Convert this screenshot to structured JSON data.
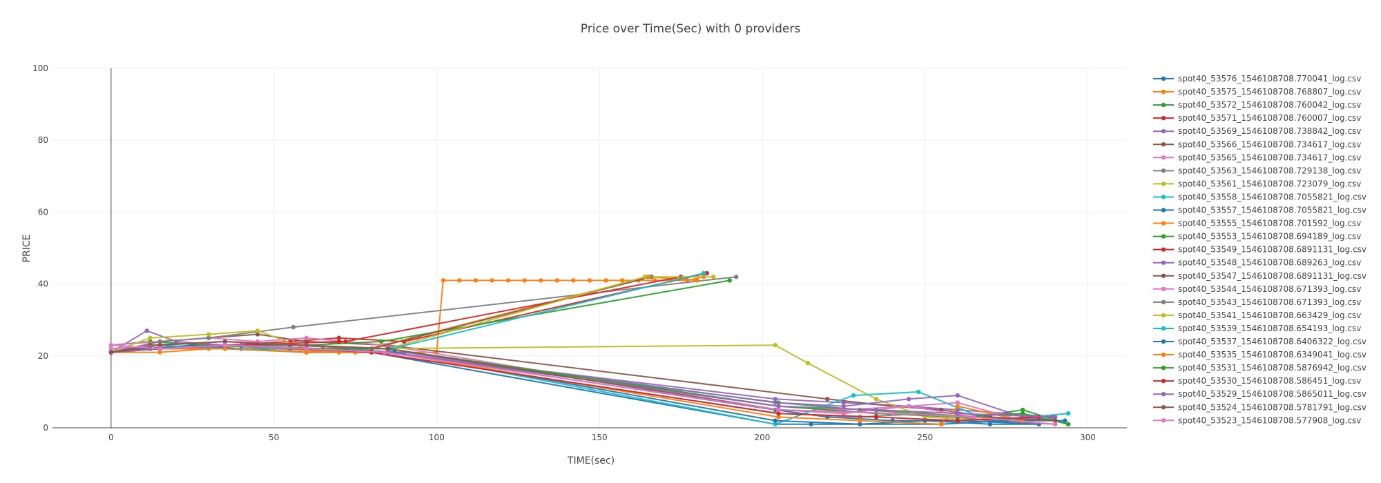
{
  "chart_data": {
    "type": "line",
    "title": "Price over Time(Sec) with 0 providers",
    "xlabel": "TIME(sec)",
    "ylabel": "PRICE",
    "xlim": [
      -18,
      312
    ],
    "ylim": [
      0,
      100
    ],
    "x_ticks": [
      0,
      50,
      100,
      150,
      200,
      250,
      300
    ],
    "y_ticks": [
      0,
      20,
      40,
      60,
      80,
      100
    ],
    "grid": true,
    "legend_position": "right",
    "series": [
      {
        "name": "spot40_53576_1546108708.770041_log.csv",
        "color": "#1f77b4",
        "x": [
          0,
          10,
          25,
          40,
          60,
          80,
          204,
          215,
          230,
          250,
          270,
          285
        ],
        "y": [
          21,
          22,
          23,
          22,
          21,
          21,
          1,
          1,
          1,
          2,
          1,
          1
        ]
      },
      {
        "name": "spot40_53575_1546108708.768807_log.csv",
        "color": "#ff7f0e",
        "x": [
          0,
          15,
          30,
          50,
          70,
          100,
          102,
          107,
          112,
          117,
          122,
          127,
          132,
          137,
          142,
          147,
          152,
          157,
          162,
          167,
          172,
          177,
          182
        ],
        "y": [
          21,
          21,
          22,
          22,
          21,
          21,
          41,
          41,
          41,
          41,
          41,
          41,
          41,
          41,
          41,
          41,
          41,
          41,
          41,
          41,
          41,
          41,
          42
        ]
      },
      {
        "name": "spot40_53572_1546108708.760042_log.csv",
        "color": "#2ca02c",
        "x": [
          0,
          12,
          30,
          55,
          75,
          205,
          230,
          250,
          265,
          280,
          294
        ],
        "y": [
          23,
          24,
          23,
          22,
          22,
          7,
          5,
          4,
          3,
          5,
          1
        ]
      },
      {
        "name": "spot40_53571_1546108708.760007_log.csv",
        "color": "#d62728",
        "x": [
          0,
          15,
          35,
          55,
          70,
          90,
          183
        ],
        "y": [
          21,
          22,
          23,
          24,
          25,
          24,
          43
        ]
      },
      {
        "name": "spot40_53569_1546108708.738842_log.csv",
        "color": "#9467bd",
        "x": [
          0,
          11,
          20,
          35,
          60,
          85,
          204,
          225,
          245,
          260,
          275,
          290
        ],
        "y": [
          21,
          27,
          24,
          23,
          22,
          21,
          8,
          7,
          6,
          5,
          4,
          3
        ]
      },
      {
        "name": "spot40_53566_1546108708.734617_log.csv",
        "color": "#8c564b",
        "x": [
          0,
          15,
          30,
          45,
          60,
          85,
          220,
          240,
          255,
          270,
          290
        ],
        "y": [
          21,
          24,
          25,
          26,
          24,
          23,
          8,
          6,
          5,
          3,
          2
        ]
      },
      {
        "name": "spot40_53565_1546108708.734617_log.csv",
        "color": "#e377c2",
        "x": [
          0,
          15,
          30,
          45,
          60,
          84,
          205,
          225,
          245,
          265,
          285
        ],
        "y": [
          23,
          24,
          25,
          24,
          25,
          23,
          5,
          4,
          6,
          3,
          1
        ]
      },
      {
        "name": "spot40_53563_1546108708.729138_log.csv",
        "color": "#7f7f7f",
        "x": [
          0,
          15,
          30,
          56,
          192
        ],
        "y": [
          21,
          24,
          25,
          28,
          42
        ]
      },
      {
        "name": "spot40_53561_1546108708.723079_log.csv",
        "color": "#bcbd22",
        "x": [
          0,
          12,
          30,
          45,
          60,
          80,
          204,
          214,
          235,
          250,
          270,
          290
        ],
        "y": [
          21,
          25,
          26,
          27,
          22,
          22,
          23,
          18,
          8,
          3,
          2,
          1
        ]
      },
      {
        "name": "spot40_53558_1546108708.7055821_log.csv",
        "color": "#17becf",
        "x": [
          0,
          15,
          35,
          60,
          87,
          204,
          228,
          248,
          270,
          294
        ],
        "y": [
          22,
          23,
          22,
          22,
          21,
          1,
          9,
          10,
          2,
          4
        ]
      },
      {
        "name": "spot40_53557_1546108708.7055821_log.csv",
        "color": "#1f77b4",
        "x": [
          0,
          12,
          35,
          60,
          85,
          204,
          220,
          240,
          260,
          285
        ],
        "y": [
          21,
          22,
          22,
          21,
          21,
          5,
          3,
          2,
          2,
          1
        ]
      },
      {
        "name": "spot40_53555_1546108708.701592_log.csv",
        "color": "#ff7f0e",
        "x": [
          0,
          15,
          35,
          55,
          70,
          75,
          165,
          180
        ],
        "y": [
          21,
          22,
          23,
          22,
          21,
          21,
          42,
          41
        ]
      },
      {
        "name": "spot40_53553_1546108708.694189_log.csv",
        "color": "#2ca02c",
        "x": [
          0,
          15,
          35,
          60,
          83,
          190
        ],
        "y": [
          21,
          22,
          23,
          23,
          24,
          41
        ]
      },
      {
        "name": "spot40_53549_1546108708.6891131_log.csv",
        "color": "#d62728",
        "x": [
          0,
          15,
          40,
          70,
          72,
          175
        ],
        "y": [
          21,
          22,
          23,
          24,
          24,
          42
        ]
      },
      {
        "name": "spot40_53548_1546108708.689263_log.csv",
        "color": "#9467bd",
        "x": [
          0,
          15,
          40,
          65,
          90,
          204,
          225,
          245,
          260,
          280,
          290
        ],
        "y": [
          21,
          22,
          23,
          22,
          21,
          7,
          6,
          8,
          9,
          3,
          2
        ]
      },
      {
        "name": "spot40_53547_1546108708.6891131_log.csv",
        "color": "#8c564b",
        "x": [
          0,
          12,
          35,
          55,
          80,
          166
        ],
        "y": [
          21,
          23,
          24,
          23,
          22,
          42
        ]
      },
      {
        "name": "spot40_53544_1546108708.671393_log.csv",
        "color": "#e377c2",
        "x": [
          0,
          15,
          35,
          60,
          85,
          205,
          225,
          245,
          260,
          280
        ],
        "y": [
          22,
          23,
          24,
          23,
          22,
          6,
          5,
          6,
          7,
          2
        ]
      },
      {
        "name": "spot40_53543_1546108708.671393_log.csv",
        "color": "#7f7f7f",
        "x": [
          0,
          15,
          35,
          55,
          80,
          205,
          230,
          250,
          270,
          290
        ],
        "y": [
          21,
          22,
          23,
          22,
          21,
          4,
          3,
          4,
          2,
          1
        ]
      },
      {
        "name": "spot40_53541_1546108708.663429_log.csv",
        "color": "#bcbd22",
        "x": [
          0,
          15,
          35,
          60,
          85,
          164,
          185
        ],
        "y": [
          21,
          22,
          23,
          22,
          22,
          42,
          42
        ]
      },
      {
        "name": "spot40_53539_1546108708.654193_log.csv",
        "color": "#17becf",
        "x": [
          0,
          15,
          35,
          60,
          86,
          182
        ],
        "y": [
          21,
          22,
          23,
          22,
          22,
          43
        ]
      },
      {
        "name": "spot40_53537_1546108708.6406322_log.csv",
        "color": "#1f77b4",
        "x": [
          0,
          15,
          35,
          60,
          87,
          204,
          230,
          255,
          275,
          293
        ],
        "y": [
          21,
          22,
          23,
          22,
          21,
          2,
          1,
          1,
          2,
          2
        ]
      },
      {
        "name": "spot40_53535_1546108708.6349041_log.csv",
        "color": "#ff7f0e",
        "x": [
          0,
          15,
          35,
          60,
          85,
          205,
          230,
          255,
          260,
          280
        ],
        "y": [
          21,
          22,
          22,
          21,
          21,
          3,
          2,
          1,
          6,
          2
        ]
      },
      {
        "name": "spot40_53531_1546108708.5876942_log.csv",
        "color": "#2ca02c",
        "x": [
          0,
          15,
          35,
          60,
          85,
          205,
          235,
          260,
          280,
          294
        ],
        "y": [
          21,
          22,
          23,
          22,
          22,
          6,
          4,
          3,
          4,
          1
        ]
      },
      {
        "name": "spot40_53530_1546108708.586451_log.csv",
        "color": "#d62728",
        "x": [
          0,
          15,
          35,
          60,
          80,
          205,
          235,
          260,
          285
        ],
        "y": [
          21,
          22,
          23,
          22,
          21,
          4,
          3,
          2,
          3
        ]
      },
      {
        "name": "spot40_53529_1546108708.5865011_log.csv",
        "color": "#9467bd",
        "x": [
          0,
          15,
          35,
          60,
          85,
          205,
          235,
          260,
          289
        ],
        "y": [
          21,
          22,
          23,
          22,
          21,
          6,
          5,
          4,
          3
        ]
      },
      {
        "name": "spot40_53524_1546108708.5781791_log.csv",
        "color": "#8c564b",
        "x": [
          0,
          15,
          35,
          60,
          85,
          205,
          240,
          265,
          290
        ],
        "y": [
          21,
          23,
          24,
          23,
          22,
          5,
          4,
          3,
          2
        ]
      },
      {
        "name": "spot40_53523_1546108708.577908_log.csv",
        "color": "#e377c2",
        "x": [
          0,
          15,
          35,
          60,
          84,
          205,
          240,
          265,
          290
        ],
        "y": [
          23,
          22,
          23,
          22,
          21,
          5,
          4,
          3,
          1
        ]
      }
    ]
  }
}
